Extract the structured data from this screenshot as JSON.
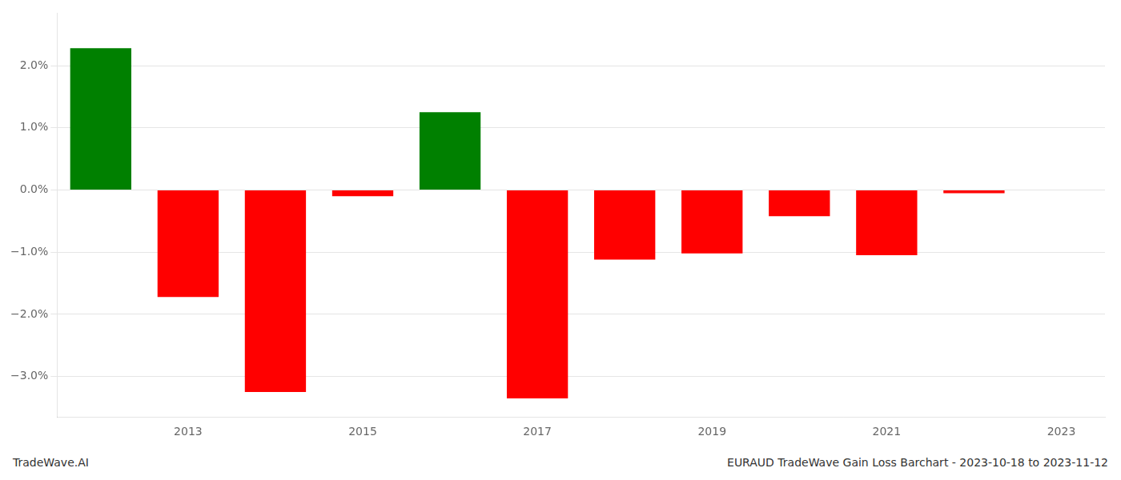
{
  "chart_data": {
    "type": "bar",
    "categories": [
      null,
      "2013",
      null,
      "2015",
      null,
      "2017",
      null,
      "2019",
      null,
      "2021",
      null,
      "2023"
    ],
    "values": [
      2.28,
      -1.72,
      -3.25,
      -0.1,
      1.25,
      -3.35,
      -1.12,
      -1.02,
      -0.42,
      -1.05,
      -0.05,
      0.0
    ],
    "colors": [
      "#008000",
      "#ff0000",
      "#ff0000",
      "#ff0000",
      "#008000",
      "#ff0000",
      "#ff0000",
      "#ff0000",
      "#ff0000",
      "#ff0000",
      "#ff0000",
      "#ff0000"
    ],
    "ylim": [
      -3.65,
      2.85
    ],
    "yticks": [
      {
        "value": -3.0,
        "label": "−3.0%"
      },
      {
        "value": -2.0,
        "label": "−2.0%"
      },
      {
        "value": -1.0,
        "label": "−1.0%"
      },
      {
        "value": 0.0,
        "label": "0.0%"
      },
      {
        "value": 1.0,
        "label": "1.0%"
      },
      {
        "value": 2.0,
        "label": "2.0%"
      }
    ],
    "grid": true,
    "annotations": [
      "TradeWave.AI",
      "EURAUD TradeWave Gain Loss Barchart - 2023-10-18 to 2023-11-12"
    ]
  }
}
